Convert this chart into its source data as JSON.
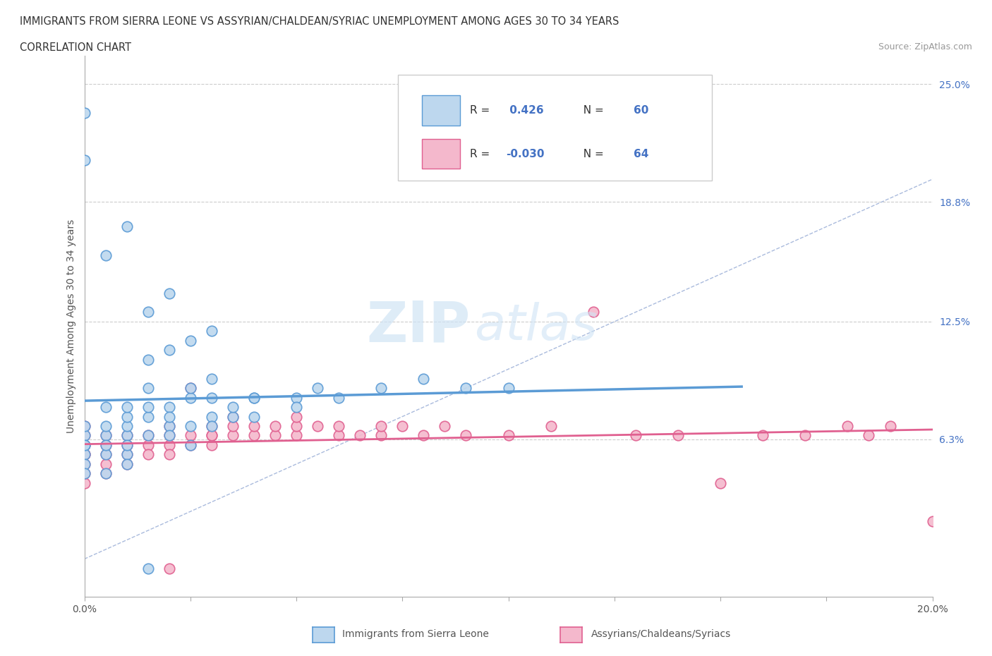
{
  "title": "IMMIGRANTS FROM SIERRA LEONE VS ASSYRIAN/CHALDEAN/SYRIAC UNEMPLOYMENT AMONG AGES 30 TO 34 YEARS",
  "subtitle": "CORRELATION CHART",
  "source": "Source: ZipAtlas.com",
  "ylabel": "Unemployment Among Ages 30 to 34 years",
  "xlim": [
    0.0,
    0.2
  ],
  "ylim": [
    -0.02,
    0.265
  ],
  "xticks": [
    0.0,
    0.025,
    0.05,
    0.075,
    0.1,
    0.125,
    0.15,
    0.175,
    0.2
  ],
  "xtick_labels": [
    "0.0%",
    "",
    "",
    "",
    "",
    "",
    "",
    "",
    "20.0%"
  ],
  "ytick_labels_right": [
    "6.3%",
    "12.5%",
    "18.8%",
    "25.0%"
  ],
  "ytick_vals_right": [
    0.063,
    0.125,
    0.188,
    0.25
  ],
  "blue_color": "#5b9bd5",
  "blue_fill": "#bdd7ee",
  "pink_color": "#e06090",
  "pink_fill": "#f4b8cc",
  "blue_R": 0.426,
  "blue_N": 60,
  "pink_R": -0.03,
  "pink_N": 64,
  "watermark_zip": "ZIP",
  "watermark_atlas": "atlas",
  "blue_scatter_x": [
    0.0,
    0.0,
    0.0,
    0.0,
    0.0,
    0.0,
    0.0,
    0.005,
    0.005,
    0.005,
    0.005,
    0.005,
    0.01,
    0.01,
    0.01,
    0.01,
    0.01,
    0.01,
    0.015,
    0.015,
    0.015,
    0.015,
    0.02,
    0.02,
    0.02,
    0.02,
    0.025,
    0.025,
    0.025,
    0.03,
    0.03,
    0.03,
    0.035,
    0.035,
    0.04,
    0.04,
    0.05,
    0.05,
    0.055,
    0.06,
    0.07,
    0.08,
    0.09,
    0.1,
    0.02,
    0.03,
    0.025,
    0.015,
    0.01,
    0.005,
    0.0,
    0.0,
    0.005,
    0.01,
    0.015,
    0.02,
    0.03,
    0.04,
    0.015,
    0.025
  ],
  "blue_scatter_y": [
    0.06,
    0.065,
    0.055,
    0.07,
    0.06,
    0.05,
    0.045,
    0.065,
    0.07,
    0.055,
    0.06,
    0.045,
    0.065,
    0.07,
    0.075,
    0.055,
    0.06,
    0.05,
    0.075,
    0.065,
    0.08,
    0.09,
    0.07,
    0.08,
    0.075,
    0.065,
    0.085,
    0.07,
    0.09,
    0.075,
    0.085,
    0.07,
    0.075,
    0.08,
    0.085,
    0.075,
    0.085,
    0.08,
    0.09,
    0.085,
    0.09,
    0.095,
    0.09,
    0.09,
    0.11,
    0.095,
    0.115,
    0.105,
    0.08,
    0.08,
    0.21,
    0.235,
    0.16,
    0.175,
    0.13,
    0.14,
    0.12,
    0.085,
    -0.005,
    0.06
  ],
  "pink_scatter_x": [
    0.0,
    0.0,
    0.0,
    0.0,
    0.0,
    0.0,
    0.0,
    0.0,
    0.005,
    0.005,
    0.005,
    0.005,
    0.005,
    0.01,
    0.01,
    0.01,
    0.01,
    0.015,
    0.015,
    0.015,
    0.02,
    0.02,
    0.02,
    0.02,
    0.025,
    0.025,
    0.03,
    0.03,
    0.03,
    0.035,
    0.035,
    0.04,
    0.04,
    0.045,
    0.045,
    0.05,
    0.05,
    0.05,
    0.055,
    0.06,
    0.06,
    0.065,
    0.07,
    0.07,
    0.075,
    0.08,
    0.085,
    0.09,
    0.1,
    0.11,
    0.12,
    0.13,
    0.14,
    0.15,
    0.16,
    0.17,
    0.18,
    0.185,
    0.19,
    0.2,
    0.025,
    0.035,
    0.03,
    0.02
  ],
  "pink_scatter_y": [
    0.06,
    0.065,
    0.055,
    0.07,
    0.05,
    0.04,
    0.045,
    0.055,
    0.065,
    0.055,
    0.06,
    0.045,
    0.05,
    0.065,
    0.055,
    0.06,
    0.05,
    0.065,
    0.06,
    0.055,
    0.065,
    0.07,
    0.06,
    0.055,
    0.065,
    0.06,
    0.07,
    0.065,
    0.06,
    0.065,
    0.07,
    0.065,
    0.07,
    0.065,
    0.07,
    0.065,
    0.07,
    0.075,
    0.07,
    0.065,
    0.07,
    0.065,
    0.065,
    0.07,
    0.07,
    0.065,
    0.07,
    0.065,
    0.065,
    0.07,
    0.13,
    0.065,
    0.065,
    0.04,
    0.065,
    0.065,
    0.07,
    0.065,
    0.07,
    0.02,
    0.09,
    0.075,
    0.065,
    -0.005
  ]
}
